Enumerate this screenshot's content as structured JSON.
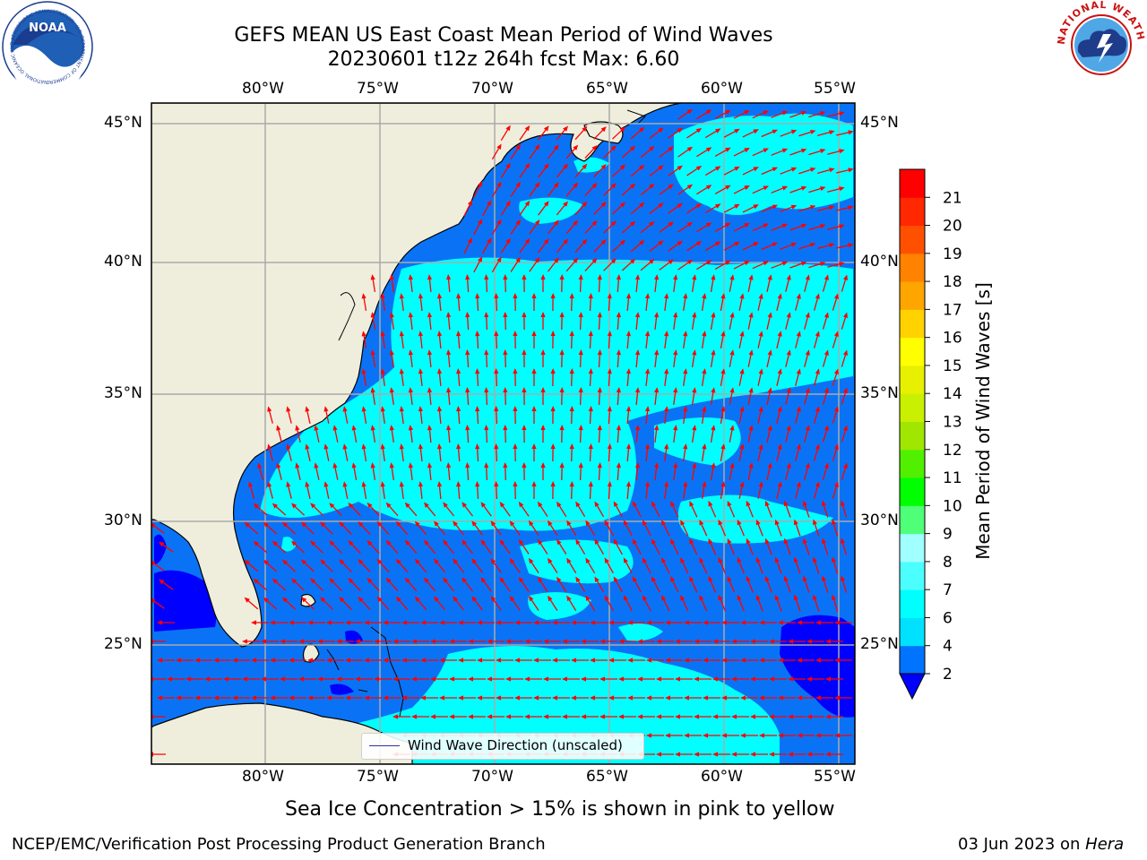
{
  "title": {
    "line1": "GEFS MEAN US East Coast Mean Period of Wind Waves",
    "line2": "20230601 t12z 264h fcst   Max: 6.60"
  },
  "map": {
    "lon_labels": [
      "80°W",
      "75°W",
      "70°W",
      "65°W",
      "60°W",
      "55°W"
    ],
    "lat_labels": [
      "45°N",
      "40°N",
      "35°N",
      "30°N",
      "25°N"
    ],
    "legend_label": "Wind Wave Direction (unscaled)"
  },
  "colorbar": {
    "label": "Mean Period of Wind Waves [s]",
    "ticks": [
      "2",
      "4",
      "6",
      "7",
      "8",
      "9",
      "10",
      "11",
      "12",
      "13",
      "14",
      "15",
      "16",
      "17",
      "18",
      "19",
      "20",
      "21"
    ],
    "colors": [
      "#0073ff",
      "#00e1ff",
      "#00ffff",
      "#4cffff",
      "#a0ffff",
      "#50ff78",
      "#00ff00",
      "#50f000",
      "#a0e600",
      "#c8f000",
      "#e6f000",
      "#ffff00",
      "#ffd200",
      "#ffa500",
      "#ff8200",
      "#ff5000",
      "#ff2800",
      "#ff0000"
    ],
    "under_color": "#0000ff"
  },
  "colors": {
    "land": "#efeedd",
    "ocean_low": "#0a73f5",
    "ocean_mid": "#00ffff",
    "ocean_under": "#0000ff",
    "arrow": "#ff0000",
    "grid": "#aaaaaa"
  },
  "footer": {
    "sea_ice_note": "Sea Ice Concentration > 15% is shown in pink to yellow",
    "left": "NCEP/EMC/Verification Post Processing Product Generation Branch",
    "right_date": "03 Jun 2023 on ",
    "right_host": "Hera"
  },
  "logos": {
    "left": "NOAA",
    "left_ring": "NATIONAL OCEANIC AND ATMOSPHERIC ADMINISTRATION · U.S. DEPARTMENT OF COMMERCE ·",
    "right_ring": "NATIONAL WEATHER SERVICE"
  }
}
